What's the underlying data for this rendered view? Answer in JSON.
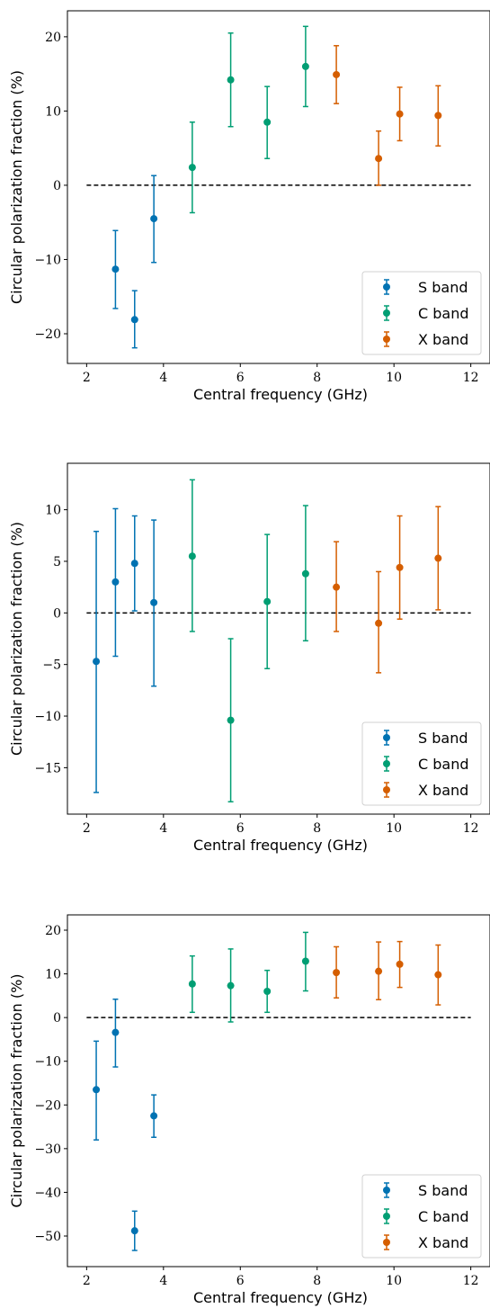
{
  "chart_data": [
    {
      "type": "scatter",
      "xlabel": "Central frequency (GHz)",
      "ylabel": "Circular polarization fraction (%)",
      "xlim": [
        1.5,
        12.5
      ],
      "ylim": [
        -24,
        23.5
      ],
      "xticks": [
        2,
        4,
        6,
        8,
        10,
        12
      ],
      "xtick_labels": [
        "2",
        "4",
        "6",
        "8",
        "10",
        "12"
      ],
      "yticks": [
        -20,
        -10,
        0,
        10,
        20
      ],
      "ytick_labels": [
        "−20",
        "−10",
        "0",
        "10",
        "20"
      ],
      "reference_line": {
        "y": 0,
        "style": "dashed",
        "x_from": 2,
        "x_to": 12
      },
      "legend_position": "lower-right",
      "series": [
        {
          "name": "S band",
          "color": "#0072B2",
          "points": [
            {
              "x": 2.75,
              "y": -11.3,
              "lo": -16.6,
              "hi": -6.1
            },
            {
              "x": 3.25,
              "y": -18.1,
              "lo": -21.9,
              "hi": -14.2
            },
            {
              "x": 3.75,
              "y": -4.5,
              "lo": -10.4,
              "hi": 1.3
            }
          ]
        },
        {
          "name": "C band",
          "color": "#009E73",
          "points": [
            {
              "x": 4.75,
              "y": 2.4,
              "lo": -3.7,
              "hi": 8.5
            },
            {
              "x": 5.75,
              "y": 14.2,
              "lo": 7.9,
              "hi": 20.5
            },
            {
              "x": 6.7,
              "y": 8.5,
              "lo": 3.6,
              "hi": 13.3
            },
            {
              "x": 7.7,
              "y": 16.0,
              "lo": 10.6,
              "hi": 21.4
            }
          ]
        },
        {
          "name": "X band",
          "color": "#D55E00",
          "points": [
            {
              "x": 8.5,
              "y": 14.9,
              "lo": 11.0,
              "hi": 18.8
            },
            {
              "x": 9.6,
              "y": 3.6,
              "lo": 0.0,
              "hi": 7.3
            },
            {
              "x": 10.15,
              "y": 9.6,
              "lo": 6.0,
              "hi": 13.2
            },
            {
              "x": 11.15,
              "y": 9.4,
              "lo": 5.3,
              "hi": 13.4
            }
          ]
        }
      ]
    },
    {
      "type": "scatter",
      "xlabel": "Central frequency (GHz)",
      "ylabel": "Circular polarization fraction (%)",
      "xlim": [
        1.5,
        12.5
      ],
      "ylim": [
        -19.5,
        14.5
      ],
      "xticks": [
        2,
        4,
        6,
        8,
        10,
        12
      ],
      "xtick_labels": [
        "2",
        "4",
        "6",
        "8",
        "10",
        "12"
      ],
      "yticks": [
        -15,
        -10,
        -5,
        0,
        5,
        10
      ],
      "ytick_labels": [
        "−15",
        "−10",
        "−5",
        "0",
        "5",
        "10"
      ],
      "reference_line": {
        "y": 0,
        "style": "dashed",
        "x_from": 2,
        "x_to": 12
      },
      "legend_position": "lower-right",
      "series": [
        {
          "name": "S band",
          "color": "#0072B2",
          "points": [
            {
              "x": 2.25,
              "y": -4.7,
              "lo": -17.4,
              "hi": 7.9
            },
            {
              "x": 2.75,
              "y": 3.0,
              "lo": -4.2,
              "hi": 10.1
            },
            {
              "x": 3.25,
              "y": 4.8,
              "lo": 0.2,
              "hi": 9.4
            },
            {
              "x": 3.75,
              "y": 1.0,
              "lo": -7.1,
              "hi": 9.0
            }
          ]
        },
        {
          "name": "C band",
          "color": "#009E73",
          "points": [
            {
              "x": 4.75,
              "y": 5.5,
              "lo": -1.8,
              "hi": 12.9
            },
            {
              "x": 5.75,
              "y": -10.4,
              "lo": -18.3,
              "hi": -2.5
            },
            {
              "x": 6.7,
              "y": 1.1,
              "lo": -5.4,
              "hi": 7.6
            },
            {
              "x": 7.7,
              "y": 3.8,
              "lo": -2.7,
              "hi": 10.4
            }
          ]
        },
        {
          "name": "X band",
          "color": "#D55E00",
          "points": [
            {
              "x": 8.5,
              "y": 2.5,
              "lo": -1.8,
              "hi": 6.9
            },
            {
              "x": 9.6,
              "y": -1.0,
              "lo": -5.8,
              "hi": 4.0
            },
            {
              "x": 10.15,
              "y": 4.4,
              "lo": -0.6,
              "hi": 9.4
            },
            {
              "x": 11.15,
              "y": 5.3,
              "lo": 0.3,
              "hi": 10.3
            }
          ]
        }
      ]
    },
    {
      "type": "scatter",
      "xlabel": "Central frequency (GHz)",
      "ylabel": "Circular polarization fraction (%)",
      "xlim": [
        1.5,
        12.5
      ],
      "ylim": [
        -57,
        23.5
      ],
      "xticks": [
        2,
        4,
        6,
        8,
        10,
        12
      ],
      "xtick_labels": [
        "2",
        "4",
        "6",
        "8",
        "10",
        "12"
      ],
      "yticks": [
        -50,
        -40,
        -30,
        -20,
        -10,
        0,
        10,
        20
      ],
      "ytick_labels": [
        "−50",
        "−40",
        "−30",
        "−20",
        "−10",
        "0",
        "10",
        "20"
      ],
      "reference_line": {
        "y": 0,
        "style": "dashed",
        "x_from": 2,
        "x_to": 12
      },
      "legend_position": "lower-right",
      "series": [
        {
          "name": "S band",
          "color": "#0072B2",
          "points": [
            {
              "x": 2.25,
              "y": -16.5,
              "lo": -28.0,
              "hi": -5.4
            },
            {
              "x": 2.75,
              "y": -3.4,
              "lo": -11.3,
              "hi": 4.2
            },
            {
              "x": 3.25,
              "y": -48.8,
              "lo": -53.3,
              "hi": -44.3
            },
            {
              "x": 3.75,
              "y": -22.5,
              "lo": -27.4,
              "hi": -17.7
            }
          ]
        },
        {
          "name": "C band",
          "color": "#009E73",
          "points": [
            {
              "x": 4.75,
              "y": 7.7,
              "lo": 1.2,
              "hi": 14.1
            },
            {
              "x": 5.75,
              "y": 7.3,
              "lo": -1.0,
              "hi": 15.7
            },
            {
              "x": 6.7,
              "y": 6.0,
              "lo": 1.2,
              "hi": 10.8
            },
            {
              "x": 7.7,
              "y": 12.9,
              "lo": 6.1,
              "hi": 19.5
            }
          ]
        },
        {
          "name": "X band",
          "color": "#D55E00",
          "points": [
            {
              "x": 8.5,
              "y": 10.3,
              "lo": 4.5,
              "hi": 16.2
            },
            {
              "x": 9.6,
              "y": 10.6,
              "lo": 4.1,
              "hi": 17.3
            },
            {
              "x": 10.15,
              "y": 12.2,
              "lo": 6.9,
              "hi": 17.4
            },
            {
              "x": 11.15,
              "y": 9.8,
              "lo": 2.9,
              "hi": 16.6
            }
          ]
        }
      ]
    }
  ]
}
